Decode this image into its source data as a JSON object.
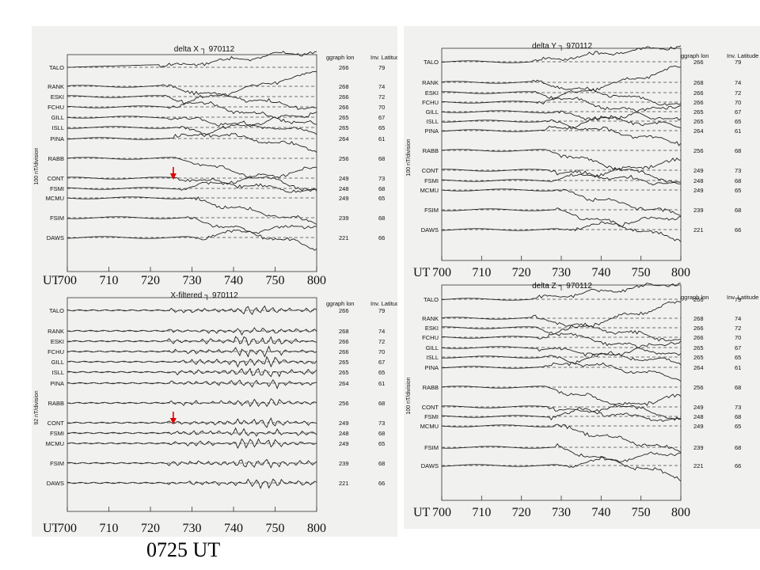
{
  "caption": "0725 UT",
  "chart_data": [
    {
      "type": "line",
      "title": "delta X",
      "date": "970112",
      "ylabel": "100 nT/division",
      "xlabel": "UT",
      "x_ticks": [
        "700",
        "710",
        "720",
        "730",
        "740",
        "750",
        "800"
      ],
      "col_headers": [
        "ggraph lon",
        "Inv. Latitude"
      ],
      "arrow_at": "0725",
      "stations": [
        {
          "name": "TALO",
          "lon": "266",
          "lat": "79"
        },
        {
          "name": "RANK",
          "lon": "268",
          "lat": "74"
        },
        {
          "name": "ESKI",
          "lon": "266",
          "lat": "72"
        },
        {
          "name": "FCHU",
          "lon": "266",
          "lat": "70"
        },
        {
          "name": "GILL",
          "lon": "265",
          "lat": "67"
        },
        {
          "name": "ISLL",
          "lon": "265",
          "lat": "65"
        },
        {
          "name": "PINA",
          "lon": "264",
          "lat": "61"
        },
        {
          "name": "RABB",
          "lon": "256",
          "lat": "68"
        },
        {
          "name": "CONT",
          "lon": "249",
          "lat": "73"
        },
        {
          "name": "FSMI",
          "lon": "248",
          "lat": "68"
        },
        {
          "name": "MCMU",
          "lon": "249",
          "lat": "65"
        },
        {
          "name": "FSIM",
          "lon": "239",
          "lat": "68"
        },
        {
          "name": "DAWS",
          "lon": "221",
          "lat": "66"
        }
      ]
    },
    {
      "type": "line",
      "title": "delta Y",
      "date": "970112",
      "ylabel": "100 nT/division",
      "xlabel": "UT",
      "x_ticks": [
        "700",
        "710",
        "720",
        "730",
        "740",
        "750",
        "800"
      ],
      "col_headers": [
        "ggraph lon",
        "Inv. Latitude"
      ],
      "stations": [
        {
          "name": "TALO",
          "lon": "266",
          "lat": "79"
        },
        {
          "name": "RANK",
          "lon": "268",
          "lat": "74"
        },
        {
          "name": "ESKI",
          "lon": "266",
          "lat": "72"
        },
        {
          "name": "FCHU",
          "lon": "266",
          "lat": "70"
        },
        {
          "name": "GILL",
          "lon": "265",
          "lat": "67"
        },
        {
          "name": "ISLL",
          "lon": "265",
          "lat": "65"
        },
        {
          "name": "PINA",
          "lon": "264",
          "lat": "61"
        },
        {
          "name": "RABB",
          "lon": "256",
          "lat": "68"
        },
        {
          "name": "CONT",
          "lon": "249",
          "lat": "73"
        },
        {
          "name": "FSMI",
          "lon": "248",
          "lat": "68"
        },
        {
          "name": "MCMU",
          "lon": "249",
          "lat": "65"
        },
        {
          "name": "FSIM",
          "lon": "239",
          "lat": "68"
        },
        {
          "name": "DAWS",
          "lon": "221",
          "lat": "66"
        }
      ]
    },
    {
      "type": "line",
      "title": "X-filtered",
      "date": "970112",
      "ylabel": "92 nT/division",
      "xlabel": "UT",
      "x_ticks": [
        "700",
        "710",
        "720",
        "730",
        "740",
        "750",
        "800"
      ],
      "col_headers": [
        "ggraph lon",
        "Inv. Latitude"
      ],
      "arrow_at": "0725",
      "stations": [
        {
          "name": "TALO",
          "lon": "266",
          "lat": "79"
        },
        {
          "name": "RANK",
          "lon": "268",
          "lat": "74"
        },
        {
          "name": "ESKI",
          "lon": "266",
          "lat": "72"
        },
        {
          "name": "FCHU",
          "lon": "266",
          "lat": "70"
        },
        {
          "name": "GILL",
          "lon": "265",
          "lat": "67"
        },
        {
          "name": "ISLL",
          "lon": "265",
          "lat": "65"
        },
        {
          "name": "PINA",
          "lon": "264",
          "lat": "61"
        },
        {
          "name": "RABB",
          "lon": "256",
          "lat": "68"
        },
        {
          "name": "CONT",
          "lon": "249",
          "lat": "73"
        },
        {
          "name": "FSMI",
          "lon": "248",
          "lat": "68"
        },
        {
          "name": "MCMU",
          "lon": "249",
          "lat": "65"
        },
        {
          "name": "FSIM",
          "lon": "239",
          "lat": "68"
        },
        {
          "name": "DAWS",
          "lon": "221",
          "lat": "66"
        }
      ]
    },
    {
      "type": "line",
      "title": "delta Z",
      "date": "970112",
      "ylabel": "100 nT/division",
      "xlabel": "UT",
      "x_ticks": [
        "700",
        "710",
        "720",
        "730",
        "740",
        "750",
        "800"
      ],
      "col_headers": [
        "ggraph lon",
        "Inv. Latitude"
      ],
      "stations": [
        {
          "name": "TALO",
          "lon": "266",
          "lat": "79"
        },
        {
          "name": "RANK",
          "lon": "268",
          "lat": "74"
        },
        {
          "name": "ESKI",
          "lon": "266",
          "lat": "72"
        },
        {
          "name": "FCHU",
          "lon": "266",
          "lat": "70"
        },
        {
          "name": "GILL",
          "lon": "265",
          "lat": "67"
        },
        {
          "name": "ISLL",
          "lon": "265",
          "lat": "65"
        },
        {
          "name": "PINA",
          "lon": "264",
          "lat": "61"
        },
        {
          "name": "RABB",
          "lon": "256",
          "lat": "68"
        },
        {
          "name": "CONT",
          "lon": "249",
          "lat": "73"
        },
        {
          "name": "FSMI",
          "lon": "248",
          "lat": "68"
        },
        {
          "name": "MCMU",
          "lon": "249",
          "lat": "65"
        },
        {
          "name": "FSIM",
          "lon": "239",
          "lat": "68"
        },
        {
          "name": "DAWS",
          "lon": "221",
          "lat": "66"
        }
      ]
    }
  ]
}
